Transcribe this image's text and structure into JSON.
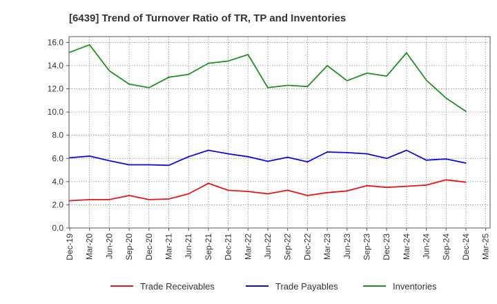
{
  "chart_data": {
    "type": "line",
    "title": "[6439]  Trend of Turnover Ratio of TR, TP and Inventories",
    "xlabel": "",
    "ylabel": "",
    "ylim": [
      0,
      16.5
    ],
    "y_ticks": [
      "0.0",
      "2.0",
      "4.0",
      "6.0",
      "8.0",
      "10.0",
      "12.0",
      "14.0",
      "16.0"
    ],
    "x_ticks": [
      "Dec-19",
      "Mar-20",
      "Jun-20",
      "Sep-20",
      "Dec-20",
      "Mar-21",
      "Jun-21",
      "Sep-21",
      "Dec-21",
      "Mar-22",
      "Jun-22",
      "Sep-22",
      "Dec-22",
      "Mar-23",
      "Jun-23",
      "Sep-23",
      "Dec-23",
      "Mar-24",
      "Jun-24",
      "Sep-24",
      "Dec-24",
      "Mar-25"
    ],
    "categories": [
      "Dec-19",
      "Mar-20",
      "Jun-20",
      "Sep-20",
      "Dec-20",
      "Mar-21",
      "Jun-21",
      "Sep-21",
      "Dec-21",
      "Mar-22",
      "Jun-22",
      "Sep-22",
      "Dec-22",
      "Mar-23",
      "Jun-23",
      "Sep-23",
      "Dec-23",
      "Mar-24",
      "Jun-24",
      "Sep-24",
      "Dec-24"
    ],
    "grid": true,
    "legend_position": "bottom",
    "series": [
      {
        "name": "Trade Receivables",
        "color": "#e8141a",
        "values": [
          2.35,
          2.45,
          2.45,
          2.8,
          2.45,
          2.5,
          2.95,
          3.85,
          3.25,
          3.15,
          2.95,
          3.25,
          2.8,
          3.05,
          3.2,
          3.65,
          3.5,
          3.6,
          3.7,
          4.15,
          3.95
        ]
      },
      {
        "name": "Trade Payables",
        "color": "#0a0ae0",
        "values": [
          6.05,
          6.2,
          5.8,
          5.45,
          5.45,
          5.4,
          6.15,
          6.7,
          6.4,
          6.15,
          5.75,
          6.1,
          5.7,
          6.55,
          6.5,
          6.4,
          6.0,
          6.7,
          5.85,
          5.95,
          5.6
        ]
      },
      {
        "name": "Inventories",
        "color": "#1f8f1f",
        "values": [
          15.15,
          15.8,
          13.55,
          12.4,
          12.1,
          13.0,
          13.25,
          14.2,
          14.4,
          14.95,
          12.1,
          12.3,
          12.2,
          14.0,
          12.7,
          13.35,
          13.1,
          15.1,
          12.75,
          11.2,
          10.05
        ]
      }
    ]
  }
}
